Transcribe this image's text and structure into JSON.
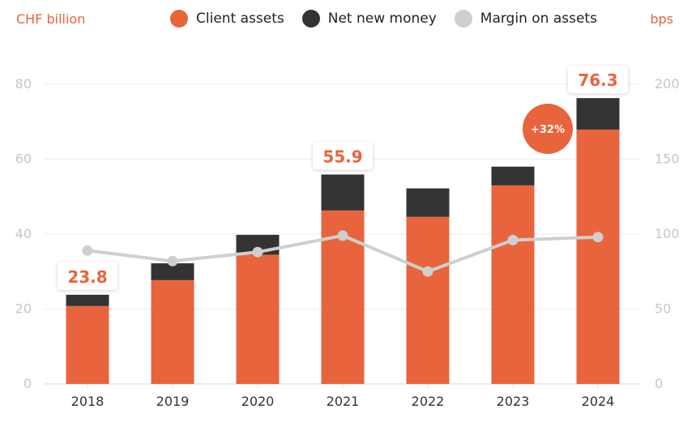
{
  "left_unit": "CHF billion",
  "right_unit": "bps",
  "legend": [
    {
      "label": "Client assets",
      "color": "#e8643c"
    },
    {
      "label": "Net new money",
      "color": "#333333"
    },
    {
      "label": "Margin on assets",
      "color": "#cfcfcf"
    }
  ],
  "growth_badge": "+32%",
  "chart_data": {
    "type": "bar",
    "stacked": true,
    "categories": [
      "2018",
      "2019",
      "2020",
      "2021",
      "2022",
      "2023",
      "2024"
    ],
    "series": [
      {
        "name": "Client assets",
        "axis": "left",
        "color": "#e8643c",
        "values": [
          20.8,
          27.7,
          34.5,
          46.3,
          44.6,
          53.0,
          67.9
        ]
      },
      {
        "name": "Net new money",
        "axis": "left",
        "color": "#333333",
        "values": [
          3.0,
          4.5,
          5.3,
          9.6,
          7.6,
          5.0,
          8.4
        ]
      },
      {
        "name": "Margin on assets",
        "type": "line",
        "axis": "right",
        "color": "#cfcfcf",
        "values": [
          89,
          82,
          88,
          99,
          75,
          96,
          98
        ]
      }
    ],
    "total_labels": [
      {
        "category": "2018",
        "text": "23.8"
      },
      {
        "category": "2021",
        "text": "55.9"
      },
      {
        "category": "2024",
        "text": "76.3"
      }
    ],
    "y_left": {
      "label": "CHF billion",
      "ticks": [
        "0",
        "20",
        "40",
        "60",
        "80"
      ],
      "ylim": [
        0,
        80
      ]
    },
    "y_right": {
      "label": "bps",
      "ticks": [
        "0",
        "50",
        "100",
        "150",
        "200"
      ],
      "ylim": [
        0,
        200
      ]
    },
    "grid": true,
    "legend_position": "top"
  }
}
